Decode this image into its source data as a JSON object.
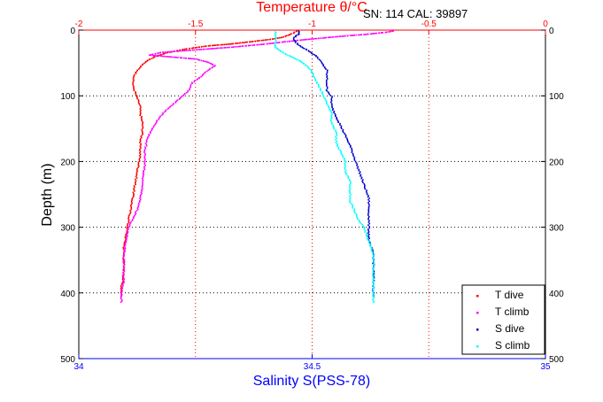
{
  "chart_data": {
    "type": "scatter",
    "title": "",
    "annotation": "SN: 114  CAL: 39897",
    "top_axis": {
      "label": "Temperature θ/°C",
      "ticks": [
        -2,
        -1.5,
        -1,
        -0.5,
        0
      ],
      "tick_labels": [
        "-2",
        "-1.5",
        "-1",
        "-0.5",
        "0"
      ],
      "range": [
        -2,
        0
      ],
      "color": "#ff0000"
    },
    "bottom_axis": {
      "label": "Salinity S(PSS-78)",
      "ticks": [
        34,
        34.5,
        35
      ],
      "tick_labels": [
        "34",
        "34.5",
        "35"
      ],
      "range": [
        34,
        35
      ],
      "color": "#0000ff"
    },
    "y_axis": {
      "label": "Depth (m)",
      "ticks": [
        0,
        100,
        200,
        300,
        400,
        500
      ],
      "tick_labels": [
        "0",
        "100",
        "200",
        "300",
        "400",
        "500"
      ],
      "range": [
        0,
        500
      ],
      "inverted": true
    },
    "grid": true,
    "legend_position": "bottom-right",
    "series": [
      {
        "name": "T dive",
        "axis": "temperature",
        "color": "#ff0000",
        "points": [
          [
            -1.07,
            0
          ],
          [
            -1.08,
            3
          ],
          [
            -1.1,
            6
          ],
          [
            -1.13,
            10
          ],
          [
            -1.18,
            13
          ],
          [
            -1.25,
            16
          ],
          [
            -1.35,
            20
          ],
          [
            -1.45,
            23
          ],
          [
            -1.55,
            28
          ],
          [
            -1.62,
            33
          ],
          [
            -1.68,
            40
          ],
          [
            -1.72,
            48
          ],
          [
            -1.74,
            55
          ],
          [
            -1.76,
            65
          ],
          [
            -1.77,
            75
          ],
          [
            -1.77,
            85
          ],
          [
            -1.76,
            95
          ],
          [
            -1.75,
            105
          ],
          [
            -1.74,
            115
          ],
          [
            -1.74,
            125
          ],
          [
            -1.73,
            140
          ],
          [
            -1.73,
            155
          ],
          [
            -1.74,
            170
          ],
          [
            -1.74,
            190
          ],
          [
            -1.75,
            210
          ],
          [
            -1.76,
            230
          ],
          [
            -1.77,
            250
          ],
          [
            -1.78,
            270
          ],
          [
            -1.79,
            290
          ],
          [
            -1.8,
            310
          ],
          [
            -1.81,
            330
          ],
          [
            -1.81,
            350
          ],
          [
            -1.81,
            370
          ],
          [
            -1.82,
            390
          ],
          [
            -1.82,
            405
          ]
        ]
      },
      {
        "name": "T climb",
        "axis": "temperature",
        "color": "#ff00ff",
        "points": [
          [
            -1.82,
            413
          ],
          [
            -1.82,
            400
          ],
          [
            -1.81,
            380
          ],
          [
            -1.81,
            360
          ],
          [
            -1.81,
            340
          ],
          [
            -1.8,
            320
          ],
          [
            -1.79,
            300
          ],
          [
            -1.77,
            285
          ],
          [
            -1.75,
            270
          ],
          [
            -1.74,
            255
          ],
          [
            -1.73,
            240
          ],
          [
            -1.73,
            225
          ],
          [
            -1.72,
            205
          ],
          [
            -1.72,
            185
          ],
          [
            -1.71,
            165
          ],
          [
            -1.69,
            150
          ],
          [
            -1.67,
            138
          ],
          [
            -1.64,
            125
          ],
          [
            -1.6,
            112
          ],
          [
            -1.56,
            100
          ],
          [
            -1.53,
            90
          ],
          [
            -1.52,
            80
          ],
          [
            -1.48,
            70
          ],
          [
            -1.45,
            60
          ],
          [
            -1.42,
            53
          ],
          [
            -1.45,
            48
          ],
          [
            -1.5,
            43
          ],
          [
            -1.6,
            40
          ],
          [
            -1.7,
            37
          ],
          [
            -1.65,
            33
          ],
          [
            -1.5,
            29
          ],
          [
            -1.35,
            25
          ],
          [
            -1.2,
            20
          ],
          [
            -1.05,
            14
          ],
          [
            -0.9,
            9
          ],
          [
            -0.76,
            5
          ],
          [
            -0.68,
            2
          ],
          [
            -0.65,
            0
          ]
        ]
      },
      {
        "name": "S dive",
        "axis": "salinity",
        "color": "#0000cc",
        "points": [
          [
            34.47,
            0
          ],
          [
            34.47,
            5
          ],
          [
            34.46,
            10
          ],
          [
            34.46,
            15
          ],
          [
            34.47,
            22
          ],
          [
            34.49,
            30
          ],
          [
            34.51,
            40
          ],
          [
            34.52,
            50
          ],
          [
            34.53,
            60
          ],
          [
            34.53,
            75
          ],
          [
            34.53,
            90
          ],
          [
            34.54,
            100
          ],
          [
            34.54,
            115
          ],
          [
            34.55,
            130
          ],
          [
            34.56,
            145
          ],
          [
            34.57,
            160
          ],
          [
            34.58,
            175
          ],
          [
            34.59,
            195
          ],
          [
            34.6,
            215
          ],
          [
            34.61,
            235
          ],
          [
            34.62,
            255
          ],
          [
            34.62,
            270
          ],
          [
            34.62,
            285
          ],
          [
            34.62,
            300
          ],
          [
            34.62,
            320
          ],
          [
            34.63,
            340
          ],
          [
            34.63,
            360
          ],
          [
            34.63,
            380
          ],
          [
            34.63,
            395
          ],
          [
            34.63,
            405
          ]
        ]
      },
      {
        "name": "S climb",
        "axis": "salinity",
        "color": "#00ffff",
        "points": [
          [
            34.63,
            413
          ],
          [
            34.63,
            400
          ],
          [
            34.63,
            380
          ],
          [
            34.63,
            360
          ],
          [
            34.63,
            340
          ],
          [
            34.62,
            320
          ],
          [
            34.61,
            300
          ],
          [
            34.6,
            290
          ],
          [
            34.59,
            275
          ],
          [
            34.58,
            260
          ],
          [
            34.58,
            245
          ],
          [
            34.58,
            230
          ],
          [
            34.57,
            215
          ],
          [
            34.57,
            200
          ],
          [
            34.56,
            185
          ],
          [
            34.55,
            170
          ],
          [
            34.55,
            155
          ],
          [
            34.54,
            140
          ],
          [
            34.54,
            125
          ],
          [
            34.53,
            110
          ],
          [
            34.52,
            95
          ],
          [
            34.51,
            80
          ],
          [
            34.5,
            65
          ],
          [
            34.49,
            55
          ],
          [
            34.47,
            45
          ],
          [
            34.44,
            35
          ],
          [
            34.42,
            25
          ],
          [
            34.42,
            15
          ],
          [
            34.42,
            5
          ],
          [
            34.42,
            0
          ]
        ]
      }
    ]
  }
}
